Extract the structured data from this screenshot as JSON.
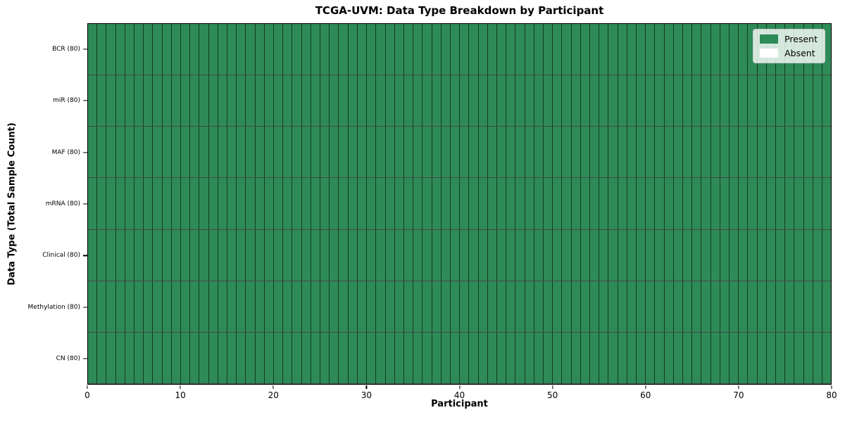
{
  "chart_data": {
    "type": "heatmap",
    "title": "TCGA-UVM: Data Type Breakdown by Participant",
    "xlabel": "Participant",
    "ylabel": "Data Type (Total Sample Count)",
    "xlim": [
      0,
      80
    ],
    "x_ticks": [
      0,
      10,
      20,
      30,
      40,
      50,
      60,
      70,
      80
    ],
    "n_participants": 80,
    "all_cells_present": true,
    "rows": [
      {
        "label": "BCR (80)",
        "data_type": "BCR",
        "total_samples": 80,
        "present_count": 80,
        "absent_count": 0
      },
      {
        "label": "miR (80)",
        "data_type": "miR",
        "total_samples": 80,
        "present_count": 80,
        "absent_count": 0
      },
      {
        "label": "MAF (80)",
        "data_type": "MAF",
        "total_samples": 80,
        "present_count": 80,
        "absent_count": 0
      },
      {
        "label": "mRNA (80)",
        "data_type": "mRNA",
        "total_samples": 80,
        "present_count": 80,
        "absent_count": 0
      },
      {
        "label": "Clinical (80)",
        "data_type": "Clinical",
        "total_samples": 80,
        "present_count": 80,
        "absent_count": 0
      },
      {
        "label": "Methylation (80)",
        "data_type": "Methylation",
        "total_samples": 80,
        "present_count": 80,
        "absent_count": 0
      },
      {
        "label": "CN (80)",
        "data_type": "CN",
        "total_samples": 80,
        "present_count": 80,
        "absent_count": 0
      }
    ],
    "legend": {
      "position": "upper right",
      "entries": [
        {
          "label": "Present",
          "color": "#2e8b57"
        },
        {
          "label": "Absent",
          "color": "#ffffff"
        }
      ]
    },
    "colors": {
      "present": "#2e8b57",
      "absent": "#ffffff",
      "axes_spine": "#000000",
      "background": "#ffffff"
    },
    "layout": {
      "grid": "cell borders visible",
      "legend_position": "upper right"
    }
  }
}
